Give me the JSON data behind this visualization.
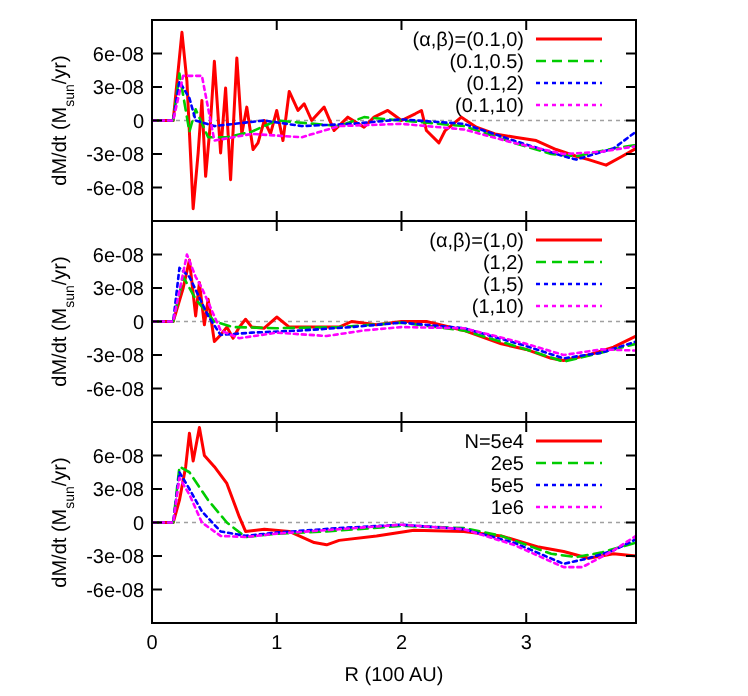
{
  "chart_data": [
    {
      "type": "line",
      "ylabel": "dM/dt (M$_{sun}$/yr)",
      "xlim": [
        0,
        3.88
      ],
      "xticks": [
        {
          "value": 0,
          "label": null
        },
        {
          "value": 1,
          "label": null
        },
        {
          "value": 2,
          "label": null
        },
        {
          "value": 3,
          "label": null
        }
      ],
      "ylim": [
        -9e-08,
        9e-08
      ],
      "yticks": [
        {
          "value": -6e-08,
          "label": "-6e-08"
        },
        {
          "value": -3e-08,
          "label": "-3e-08"
        },
        {
          "value": 0,
          "label": "0"
        },
        {
          "value": 3e-08,
          "label": "3e-08"
        },
        {
          "value": 6e-08,
          "label": "6e-08"
        }
      ],
      "tick_labels": "y",
      "legend": "top right",
      "ref_lines": [
        {
          "axis": "y",
          "value": 0,
          "color": "#a0a0a0",
          "line_style": "dotted"
        }
      ],
      "series": [
        {
          "name": "(α,β)=(0.1,0)",
          "color": "#ff0000",
          "line_style": "solid",
          "x": [
            0,
            0.17,
            0.24,
            0.28,
            0.33,
            0.37,
            0.4,
            0.43,
            0.47,
            0.5,
            0.55,
            0.59,
            0.63,
            0.68,
            0.72,
            0.76,
            0.81,
            0.85,
            0.9,
            0.95,
            1,
            1.05,
            1.1,
            1.17,
            1.22,
            1.28,
            1.38,
            1.46,
            1.57,
            1.7,
            1.78,
            1.89,
            2,
            2.11,
            2.16,
            2.2,
            2.3,
            2.35,
            2.48,
            2.6,
            2.75,
            2.91,
            3.08,
            3.24,
            3.4,
            3.5,
            3.64,
            3.77,
            3.88
          ],
          "values": [
            0,
            0,
            7.9e-08,
            3.5e-08,
            -7.9e-08,
            -2.9e-08,
            1.8e-08,
            -5e-08,
            0,
            5.3e-08,
            -2.9e-08,
            2.9e-08,
            -5.3e-08,
            5.6e-08,
            -1.2e-08,
            1.2e-08,
            -2.6e-08,
            -2e-08,
            0,
            -1.2e-08,
            9e-09,
            -1.8e-08,
            2.6e-08,
            9e-09,
            1.5e-08,
            0,
            1.2e-08,
            -9e-09,
            3e-09,
            -6e-09,
            3e-09,
            9e-09,
            0,
            6e-09,
            9e-09,
            -9e-09,
            -2e-08,
            -9e-09,
            3e-09,
            -6e-09,
            -1.2e-08,
            -1.5e-08,
            -1.8e-08,
            -2.6e-08,
            -3.2e-08,
            -3.5e-08,
            -4e-08,
            -3.2e-08,
            -2.5e-08
          ]
        },
        {
          "name": "(0.1,0.5)",
          "color": "#00cc00",
          "line_style": "dashed",
          "x": [
            0,
            0.17,
            0.22,
            0.3,
            0.35,
            0.45,
            0.6,
            0.8,
            1,
            1.5,
            1.7,
            2,
            2.5,
            2.9,
            3.2,
            3.4,
            3.7,
            3.88
          ],
          "values": [
            0,
            0,
            4.2e-08,
            -1e-08,
            1e-08,
            -1.5e-08,
            -1.5e-08,
            -1e-08,
            0,
            -5e-09,
            3e-09,
            0,
            -5e-09,
            -2e-08,
            -3e-08,
            -3.2e-08,
            -2.5e-08,
            -2.2e-08
          ]
        },
        {
          "name": "(0.1,2)",
          "color": "#0000ff",
          "line_style": "dotted",
          "x": [
            0,
            0.17,
            0.22,
            0.3,
            0.35,
            0.5,
            0.9,
            1.2,
            1.6,
            2,
            2.5,
            2.9,
            3.3,
            3.4,
            3.7,
            3.88
          ],
          "values": [
            0,
            0,
            3.5e-08,
            2e-08,
            0,
            -5e-09,
            0,
            -5e-09,
            -3e-09,
            1e-09,
            -3e-09,
            -1.8e-08,
            -3.2e-08,
            -3.5e-08,
            -2.5e-08,
            -1e-08
          ]
        },
        {
          "name": "(0.1,10)",
          "color": "#ff00ff",
          "line_style": "dotted",
          "x": [
            0,
            0.17,
            0.25,
            0.4,
            0.5,
            0.8,
            1.2,
            1.5,
            2,
            2.5,
            2.9,
            3.3,
            3.6,
            3.88
          ],
          "values": [
            0,
            0,
            4e-08,
            4e-08,
            -1.8e-08,
            -1.2e-08,
            -1.5e-08,
            -5e-09,
            -3e-09,
            -8e-09,
            -2e-08,
            -3e-08,
            -2.8e-08,
            -2.3e-08
          ]
        }
      ]
    },
    {
      "type": "line",
      "ylabel": "dM/dt (M$_{sun}$/yr)",
      "xlim": [
        0,
        3.88
      ],
      "xticks": [
        {
          "value": 0,
          "label": null
        },
        {
          "value": 1,
          "label": null
        },
        {
          "value": 2,
          "label": null
        },
        {
          "value": 3,
          "label": null
        }
      ],
      "ylim": [
        -9e-08,
        9e-08
      ],
      "yticks": [
        {
          "value": -6e-08,
          "label": "-6e-08"
        },
        {
          "value": -3e-08,
          "label": "-3e-08"
        },
        {
          "value": 0,
          "label": "0"
        },
        {
          "value": 3e-08,
          "label": "3e-08"
        },
        {
          "value": 6e-08,
          "label": "6e-08"
        }
      ],
      "tick_labels": "y",
      "legend": "top right",
      "ref_lines": [
        {
          "axis": "y",
          "value": 0,
          "color": "#a0a0a0",
          "line_style": "dotted"
        }
      ],
      "series": [
        {
          "name": "(α,β)=(1,0)",
          "color": "#ff0000",
          "line_style": "solid",
          "x": [
            0,
            0.17,
            0.25,
            0.3,
            0.35,
            0.38,
            0.42,
            0.45,
            0.5,
            0.55,
            0.6,
            0.65,
            0.7,
            0.75,
            0.8,
            0.9,
            1,
            1.1,
            1.5,
            1.6,
            1.8,
            2,
            2.2,
            2.5,
            2.8,
            3,
            3.2,
            3.3,
            3.5,
            3.7,
            3.88
          ],
          "values": [
            0,
            0,
            3e-08,
            5.5e-08,
            5e-09,
            3.5e-08,
            -3e-09,
            2e-08,
            -1.8e-08,
            -1.2e-08,
            -5e-09,
            -1.5e-08,
            -5e-09,
            2e-09,
            -5e-09,
            -6e-09,
            4e-09,
            -5e-09,
            -5e-09,
            0,
            -3e-09,
            0,
            0,
            -8e-09,
            -2e-08,
            -2.5e-08,
            -3.3e-08,
            -3.5e-08,
            -3e-08,
            -2.3e-08,
            -1.3e-08
          ]
        },
        {
          "name": "(1,2)",
          "color": "#00cc00",
          "line_style": "dashed",
          "x": [
            0,
            0.17,
            0.25,
            0.35,
            0.5,
            0.65,
            1,
            1.5,
            2,
            2.5,
            3,
            3.3,
            3.6,
            3.88
          ],
          "values": [
            0,
            0,
            4e-08,
            2e-08,
            0,
            -5e-09,
            -6e-09,
            -5e-09,
            -1e-09,
            -8e-09,
            -2.5e-08,
            -3.6e-08,
            -2.8e-08,
            -2e-08
          ]
        },
        {
          "name": "(1,5)",
          "color": "#0000ff",
          "line_style": "dotted",
          "x": [
            0,
            0.17,
            0.22,
            0.3,
            0.45,
            0.55,
            0.8,
            1.2,
            1.6,
            2,
            2.5,
            3,
            3.3,
            3.6,
            3.88
          ],
          "values": [
            0,
            0,
            4.8e-08,
            4e-08,
            5e-09,
            -1.2e-08,
            -1e-08,
            -8e-09,
            -5e-09,
            -1e-09,
            -6e-09,
            -2.2e-08,
            -3.3e-08,
            -2.8e-08,
            -1.8e-08
          ]
        },
        {
          "name": "(1,10)",
          "color": "#ff00ff",
          "line_style": "dotted",
          "x": [
            0,
            0.17,
            0.28,
            0.35,
            0.4,
            0.55,
            0.7,
            1,
            1.4,
            1.7,
            2,
            2.5,
            3,
            3.3,
            3.6,
            3.88
          ],
          "values": [
            0,
            0,
            6e-08,
            4e-08,
            3e-08,
            -8e-09,
            -1.5e-08,
            -1e-08,
            -1.3e-08,
            -8e-09,
            -5e-09,
            -6e-09,
            -2e-08,
            -3e-08,
            -2.5e-08,
            -2.6e-08
          ]
        }
      ]
    },
    {
      "type": "line",
      "xlabel": "R (100 AU)",
      "ylabel": "dM/dt (M$_{sun}$/yr)",
      "xlim": [
        0,
        3.88
      ],
      "xticks": [
        0,
        1,
        2,
        3
      ],
      "ylim": [
        -9e-08,
        9e-08
      ],
      "yticks": [
        {
          "value": -6e-08,
          "label": "-6e-08"
        },
        {
          "value": -3e-08,
          "label": "-3e-08"
        },
        {
          "value": 0,
          "label": "0"
        },
        {
          "value": 3e-08,
          "label": "3e-08"
        },
        {
          "value": 6e-08,
          "label": "6e-08"
        }
      ],
      "legend": "top right",
      "ref_lines": [
        {
          "axis": "y",
          "value": 0,
          "color": "#a0a0a0",
          "line_style": "dotted"
        }
      ],
      "series": [
        {
          "name": "N=5e4",
          "color": "#ff0000",
          "line_style": "solid",
          "x": [
            0,
            0.17,
            0.22,
            0.27,
            0.3,
            0.33,
            0.38,
            0.42,
            0.5,
            0.6,
            0.7,
            0.75,
            0.9,
            1.1,
            1.3,
            1.4,
            1.5,
            1.8,
            2.1,
            2.5,
            2.8,
            3.1,
            3.3,
            3.5,
            3.7,
            3.88
          ],
          "values": [
            0,
            0,
            2e-08,
            5e-08,
            8e-08,
            5.5e-08,
            8.5e-08,
            6e-08,
            5e-08,
            3.5e-08,
            5e-09,
            -8e-09,
            -6e-09,
            -8e-09,
            -1.8e-08,
            -2e-08,
            -1.6e-08,
            -1.2e-08,
            -7e-09,
            -8e-09,
            -1.2e-08,
            -2.2e-08,
            -2.6e-08,
            -3.2e-08,
            -2.8e-08,
            -3e-08
          ]
        },
        {
          "name": "2e5",
          "color": "#00cc00",
          "line_style": "dashed",
          "x": [
            0,
            0.17,
            0.22,
            0.3,
            0.45,
            0.6,
            0.75,
            1,
            1.4,
            2,
            2.5,
            2.8,
            3.2,
            3.4,
            3.6,
            3.88
          ],
          "values": [
            0,
            0,
            5e-08,
            4.5e-08,
            2e-08,
            0,
            -1.3e-08,
            -1e-08,
            -8e-09,
            -3e-09,
            -5e-09,
            -1.2e-08,
            -2.8e-08,
            -3.1e-08,
            -2.7e-08,
            -1.8e-08
          ]
        },
        {
          "name": "5e5",
          "color": "#0000ff",
          "line_style": "dotted",
          "x": [
            0,
            0.17,
            0.22,
            0.3,
            0.4,
            0.55,
            0.75,
            1,
            1.5,
            2,
            2.5,
            2.9,
            3.3,
            3.5,
            3.7,
            3.88
          ],
          "values": [
            0,
            0,
            4.5e-08,
            3e-08,
            1e-08,
            -8e-09,
            -1.2e-08,
            -9e-09,
            -5e-09,
            -2e-09,
            -6e-09,
            -1.8e-08,
            -3.7e-08,
            -3.2e-08,
            -2.5e-08,
            -1.5e-08
          ]
        },
        {
          "name": "1e6",
          "color": "#ff00ff",
          "line_style": "dotted",
          "x": [
            0,
            0.17,
            0.22,
            0.3,
            0.4,
            0.55,
            0.75,
            1,
            1.5,
            2,
            2.5,
            2.9,
            3.3,
            3.45,
            3.7,
            3.88
          ],
          "values": [
            0,
            0,
            4e-08,
            2.5e-08,
            0,
            -1.2e-08,
            -1.3e-08,
            -1e-08,
            -6e-09,
            -2e-09,
            -6e-09,
            -2e-08,
            -4e-08,
            -4e-08,
            -2.5e-08,
            -1.2e-08
          ]
        }
      ]
    }
  ]
}
